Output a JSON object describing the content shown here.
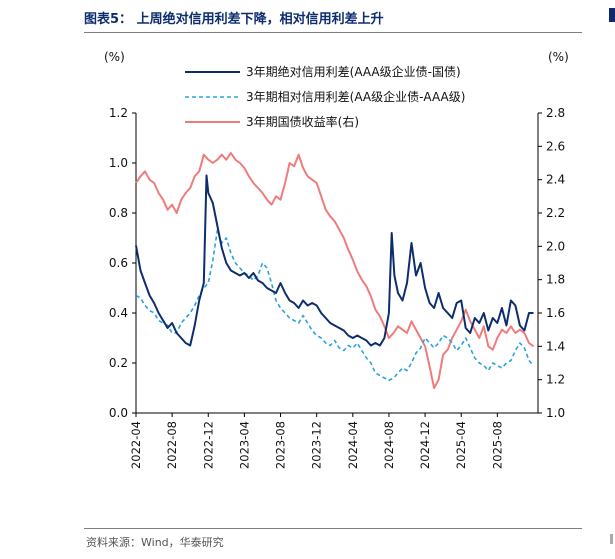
{
  "figure": {
    "title": "图表5：  上周绝对信用利差下降，相对信用利差上升",
    "source": "资料来源：Wind，华泰研究"
  },
  "chart_data": {
    "type": "line",
    "title": "上周绝对信用利差下降，相对信用利差上升",
    "ylabel_left": "(%)",
    "ylabel_right": "(%)",
    "ylim_left": [
      0.0,
      1.2
    ],
    "ylim_right": [
      1.0,
      2.8
    ],
    "y_ticks_left": [
      "0.0",
      "0.2",
      "0.4",
      "0.6",
      "0.8",
      "1.0",
      "1.2"
    ],
    "y_ticks_right": [
      "1.0",
      "1.2",
      "1.4",
      "1.6",
      "1.8",
      "2.0",
      "2.2",
      "2.4",
      "2.6",
      "2.8"
    ],
    "x_ticks": [
      "2022-04",
      "2022-08",
      "2022-12",
      "2023-04",
      "2023-08",
      "2023-12",
      "2024-04",
      "2024-08",
      "2024-12",
      "2025-04",
      "2025-08"
    ],
    "x_range_months": [
      0,
      44.5
    ],
    "grid": false,
    "legend_position": "top-center",
    "series": [
      {
        "name": "3年期绝对信用利差(AAA级企业债-国债)",
        "axis": "left",
        "color": "#0d2d6e",
        "style": "solid",
        "points": [
          [
            0,
            0.67
          ],
          [
            0.5,
            0.57
          ],
          [
            1,
            0.52
          ],
          [
            1.5,
            0.47
          ],
          [
            2,
            0.44
          ],
          [
            2.5,
            0.4
          ],
          [
            3,
            0.37
          ],
          [
            3.5,
            0.34
          ],
          [
            4,
            0.36
          ],
          [
            4.5,
            0.32
          ],
          [
            5,
            0.3
          ],
          [
            5.5,
            0.28
          ],
          [
            6,
            0.27
          ],
          [
            6.5,
            0.35
          ],
          [
            7,
            0.45
          ],
          [
            7.5,
            0.52
          ],
          [
            7.8,
            0.95
          ],
          [
            8,
            0.88
          ],
          [
            8.5,
            0.84
          ],
          [
            9,
            0.75
          ],
          [
            9.5,
            0.66
          ],
          [
            10,
            0.6
          ],
          [
            10.5,
            0.57
          ],
          [
            11,
            0.56
          ],
          [
            11.5,
            0.55
          ],
          [
            12,
            0.56
          ],
          [
            12.5,
            0.54
          ],
          [
            13,
            0.56
          ],
          [
            13.5,
            0.53
          ],
          [
            14,
            0.52
          ],
          [
            14.5,
            0.5
          ],
          [
            15,
            0.49
          ],
          [
            15.5,
            0.48
          ],
          [
            16,
            0.52
          ],
          [
            16.5,
            0.48
          ],
          [
            17,
            0.45
          ],
          [
            17.5,
            0.44
          ],
          [
            18,
            0.42
          ],
          [
            18.5,
            0.45
          ],
          [
            19,
            0.43
          ],
          [
            19.5,
            0.44
          ],
          [
            20,
            0.43
          ],
          [
            20.5,
            0.4
          ],
          [
            21,
            0.38
          ],
          [
            21.5,
            0.36
          ],
          [
            22,
            0.35
          ],
          [
            22.5,
            0.34
          ],
          [
            23,
            0.33
          ],
          [
            23.5,
            0.31
          ],
          [
            24,
            0.3
          ],
          [
            24.5,
            0.31
          ],
          [
            25,
            0.3
          ],
          [
            25.5,
            0.29
          ],
          [
            26,
            0.27
          ],
          [
            26.5,
            0.28
          ],
          [
            27,
            0.27
          ],
          [
            27.5,
            0.3
          ],
          [
            28,
            0.4
          ],
          [
            28.3,
            0.72
          ],
          [
            28.6,
            0.55
          ],
          [
            29,
            0.48
          ],
          [
            29.5,
            0.45
          ],
          [
            30,
            0.52
          ],
          [
            30.5,
            0.68
          ],
          [
            31,
            0.55
          ],
          [
            31.5,
            0.6
          ],
          [
            32,
            0.5
          ],
          [
            32.5,
            0.44
          ],
          [
            33,
            0.42
          ],
          [
            33.5,
            0.48
          ],
          [
            34,
            0.42
          ],
          [
            34.5,
            0.4
          ],
          [
            35,
            0.38
          ],
          [
            35.5,
            0.44
          ],
          [
            36,
            0.45
          ],
          [
            36.5,
            0.34
          ],
          [
            37,
            0.32
          ],
          [
            37.5,
            0.38
          ],
          [
            38,
            0.36
          ],
          [
            38.5,
            0.4
          ],
          [
            39,
            0.33
          ],
          [
            39.5,
            0.38
          ],
          [
            40,
            0.36
          ],
          [
            40.5,
            0.42
          ],
          [
            41,
            0.35
          ],
          [
            41.5,
            0.45
          ],
          [
            42,
            0.43
          ],
          [
            42.5,
            0.35
          ],
          [
            43,
            0.33
          ],
          [
            43.5,
            0.4
          ],
          [
            44,
            0.4
          ]
        ]
      },
      {
        "name": "3年期相对信用利差(AA级企业债-AAA级)",
        "axis": "left",
        "color": "#29a3e0",
        "style": "dashed",
        "points": [
          [
            0,
            0.47
          ],
          [
            0.5,
            0.46
          ],
          [
            1,
            0.43
          ],
          [
            1.5,
            0.41
          ],
          [
            2,
            0.4
          ],
          [
            2.5,
            0.37
          ],
          [
            3,
            0.36
          ],
          [
            3.5,
            0.35
          ],
          [
            4,
            0.32
          ],
          [
            4.5,
            0.32
          ],
          [
            5,
            0.36
          ],
          [
            5.5,
            0.38
          ],
          [
            6,
            0.4
          ],
          [
            6.5,
            0.43
          ],
          [
            7,
            0.47
          ],
          [
            7.5,
            0.5
          ],
          [
            8,
            0.52
          ],
          [
            8.5,
            0.61
          ],
          [
            9,
            0.73
          ],
          [
            9.5,
            0.68
          ],
          [
            10,
            0.7
          ],
          [
            10.5,
            0.64
          ],
          [
            11,
            0.6
          ],
          [
            11.5,
            0.58
          ],
          [
            12,
            0.56
          ],
          [
            12.5,
            0.55
          ],
          [
            13,
            0.53
          ],
          [
            13.5,
            0.55
          ],
          [
            14,
            0.6
          ],
          [
            14.5,
            0.58
          ],
          [
            15,
            0.52
          ],
          [
            15.5,
            0.45
          ],
          [
            16,
            0.42
          ],
          [
            16.5,
            0.4
          ],
          [
            17,
            0.38
          ],
          [
            17.5,
            0.37
          ],
          [
            18,
            0.36
          ],
          [
            18.5,
            0.39
          ],
          [
            19,
            0.36
          ],
          [
            19.5,
            0.33
          ],
          [
            20,
            0.31
          ],
          [
            20.5,
            0.3
          ],
          [
            21,
            0.28
          ],
          [
            21.5,
            0.27
          ],
          [
            22,
            0.29
          ],
          [
            22.5,
            0.26
          ],
          [
            23,
            0.25
          ],
          [
            23.5,
            0.27
          ],
          [
            24,
            0.26
          ],
          [
            24.5,
            0.28
          ],
          [
            25,
            0.25
          ],
          [
            25.5,
            0.22
          ],
          [
            26,
            0.2
          ],
          [
            26.5,
            0.16
          ],
          [
            27,
            0.15
          ],
          [
            27.5,
            0.14
          ],
          [
            28,
            0.13
          ],
          [
            28.5,
            0.14
          ],
          [
            29,
            0.16
          ],
          [
            29.5,
            0.18
          ],
          [
            30,
            0.17
          ],
          [
            30.5,
            0.2
          ],
          [
            31,
            0.24
          ],
          [
            31.5,
            0.26
          ],
          [
            32,
            0.3
          ],
          [
            32.5,
            0.28
          ],
          [
            33,
            0.26
          ],
          [
            33.5,
            0.28
          ],
          [
            34,
            0.31
          ],
          [
            34.5,
            0.3
          ],
          [
            35,
            0.28
          ],
          [
            35.5,
            0.25
          ],
          [
            36,
            0.27
          ],
          [
            36.5,
            0.3
          ],
          [
            37,
            0.26
          ],
          [
            37.5,
            0.22
          ],
          [
            38,
            0.2
          ],
          [
            38.5,
            0.19
          ],
          [
            39,
            0.17
          ],
          [
            39.5,
            0.2
          ],
          [
            40,
            0.19
          ],
          [
            40.5,
            0.18
          ],
          [
            41,
            0.2
          ],
          [
            41.5,
            0.21
          ],
          [
            42,
            0.25
          ],
          [
            42.5,
            0.28
          ],
          [
            43,
            0.26
          ],
          [
            43.5,
            0.21
          ],
          [
            44,
            0.19
          ]
        ]
      },
      {
        "name": "3年期国债收益率(右)",
        "axis": "right",
        "color": "#f07b7b",
        "style": "solid",
        "points": [
          [
            0,
            2.38
          ],
          [
            0.5,
            2.42
          ],
          [
            1,
            2.45
          ],
          [
            1.5,
            2.4
          ],
          [
            2,
            2.38
          ],
          [
            2.5,
            2.32
          ],
          [
            3,
            2.28
          ],
          [
            3.5,
            2.22
          ],
          [
            4,
            2.25
          ],
          [
            4.5,
            2.2
          ],
          [
            5,
            2.28
          ],
          [
            5.5,
            2.32
          ],
          [
            6,
            2.35
          ],
          [
            6.5,
            2.42
          ],
          [
            7,
            2.45
          ],
          [
            7.5,
            2.55
          ],
          [
            8,
            2.52
          ],
          [
            8.5,
            2.5
          ],
          [
            9,
            2.52
          ],
          [
            9.5,
            2.55
          ],
          [
            10,
            2.52
          ],
          [
            10.5,
            2.56
          ],
          [
            11,
            2.52
          ],
          [
            11.5,
            2.5
          ],
          [
            12,
            2.47
          ],
          [
            12.5,
            2.42
          ],
          [
            13,
            2.38
          ],
          [
            13.5,
            2.35
          ],
          [
            14,
            2.32
          ],
          [
            14.5,
            2.28
          ],
          [
            15,
            2.25
          ],
          [
            15.5,
            2.3
          ],
          [
            16,
            2.28
          ],
          [
            16.5,
            2.38
          ],
          [
            17,
            2.5
          ],
          [
            17.5,
            2.48
          ],
          [
            18,
            2.55
          ],
          [
            18.5,
            2.47
          ],
          [
            19,
            2.42
          ],
          [
            19.5,
            2.4
          ],
          [
            20,
            2.38
          ],
          [
            20.5,
            2.3
          ],
          [
            21,
            2.22
          ],
          [
            21.5,
            2.18
          ],
          [
            22,
            2.15
          ],
          [
            22.5,
            2.1
          ],
          [
            23,
            2.05
          ],
          [
            23.5,
            1.98
          ],
          [
            24,
            1.92
          ],
          [
            24.5,
            1.85
          ],
          [
            25,
            1.8
          ],
          [
            25.5,
            1.76
          ],
          [
            26,
            1.7
          ],
          [
            26.5,
            1.62
          ],
          [
            27,
            1.58
          ],
          [
            27.5,
            1.52
          ],
          [
            28,
            1.45
          ],
          [
            28.5,
            1.48
          ],
          [
            29,
            1.52
          ],
          [
            29.5,
            1.5
          ],
          [
            30,
            1.48
          ],
          [
            30.5,
            1.55
          ],
          [
            31,
            1.5
          ],
          [
            31.5,
            1.45
          ],
          [
            32,
            1.4
          ],
          [
            32.5,
            1.28
          ],
          [
            33,
            1.15
          ],
          [
            33.5,
            1.2
          ],
          [
            34,
            1.35
          ],
          [
            34.5,
            1.38
          ],
          [
            35,
            1.45
          ],
          [
            35.5,
            1.5
          ],
          [
            36,
            1.55
          ],
          [
            36.5,
            1.62
          ],
          [
            37,
            1.55
          ],
          [
            37.5,
            1.5
          ],
          [
            38,
            1.45
          ],
          [
            38.5,
            1.52
          ],
          [
            39,
            1.4
          ],
          [
            39.5,
            1.38
          ],
          [
            40,
            1.45
          ],
          [
            40.5,
            1.5
          ],
          [
            41,
            1.48
          ],
          [
            41.5,
            1.52
          ],
          [
            42,
            1.48
          ],
          [
            42.5,
            1.5
          ],
          [
            43,
            1.48
          ],
          [
            43.5,
            1.42
          ],
          [
            44,
            1.4
          ]
        ]
      }
    ]
  }
}
